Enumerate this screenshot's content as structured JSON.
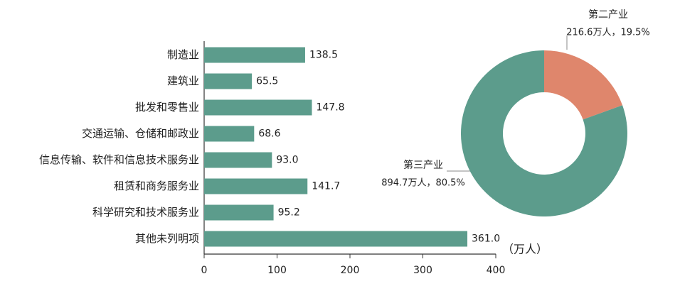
{
  "chart_data": [
    {
      "type": "bar",
      "orientation": "horizontal",
      "categories": [
        "制造业",
        "建筑业",
        "批发和零售业",
        "交通运输、仓储和邮政业",
        "信息传输、软件和信息技术服务业",
        "租赁和商务服务业",
        "科学研究和技术服务业",
        "其他未列明项"
      ],
      "values": [
        138.5,
        65.5,
        147.8,
        68.6,
        93.0,
        141.7,
        95.2,
        361.0
      ],
      "value_labels": [
        "138.5",
        "65.5",
        "147.8",
        "68.6",
        "93.0",
        "141.7",
        "95.2",
        "361.0"
      ],
      "color": "#5c9c8c",
      "xlim": [
        0,
        400
      ],
      "xticks": [
        0,
        100,
        200,
        300,
        400
      ],
      "unit": "（万人）"
    },
    {
      "type": "donut",
      "categories": [
        "第二产业",
        "第三产业"
      ],
      "values": [
        216.6,
        894.7
      ],
      "percents": [
        19.5,
        80.5
      ],
      "value_labels": [
        "216.6万人，19.5%",
        "894.7万人，80.5%"
      ],
      "colors": [
        "#df866c",
        "#5c9c8c"
      ]
    }
  ]
}
